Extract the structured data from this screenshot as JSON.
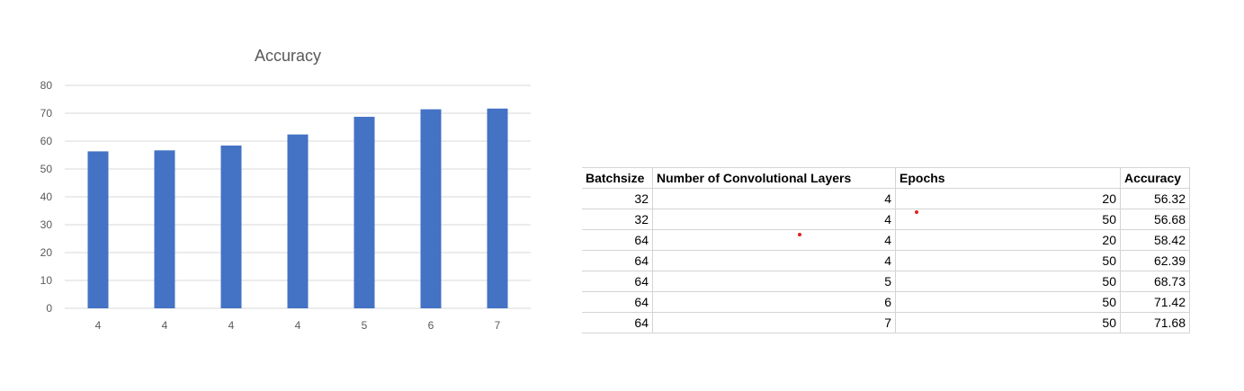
{
  "chart_data": {
    "type": "bar",
    "title": "Accuracy",
    "categories": [
      "4",
      "4",
      "4",
      "4",
      "5",
      "6",
      "7"
    ],
    "values": [
      56.32,
      56.68,
      58.42,
      62.39,
      68.73,
      71.42,
      71.68
    ],
    "ylim": [
      0,
      80
    ],
    "yticks": [
      "0",
      "10",
      "20",
      "30",
      "40",
      "50",
      "60",
      "70",
      "80"
    ],
    "xlabel": "",
    "ylabel": "",
    "grid": true,
    "legend": "none",
    "bar_color": "#4472c4"
  },
  "table": {
    "headers": [
      "Batchsize",
      "Number of Convolutional Layers",
      "Epochs",
      "Accuracy"
    ],
    "rows": [
      [
        "32",
        "4",
        "20",
        "56.32"
      ],
      [
        "32",
        "4",
        "50",
        "56.68"
      ],
      [
        "64",
        "4",
        "20",
        "58.42"
      ],
      [
        "64",
        "4",
        "50",
        "62.39"
      ],
      [
        "64",
        "5",
        "50",
        "68.73"
      ],
      [
        "64",
        "6",
        "50",
        "71.42"
      ],
      [
        "64",
        "7",
        "50",
        "71.68"
      ]
    ]
  }
}
